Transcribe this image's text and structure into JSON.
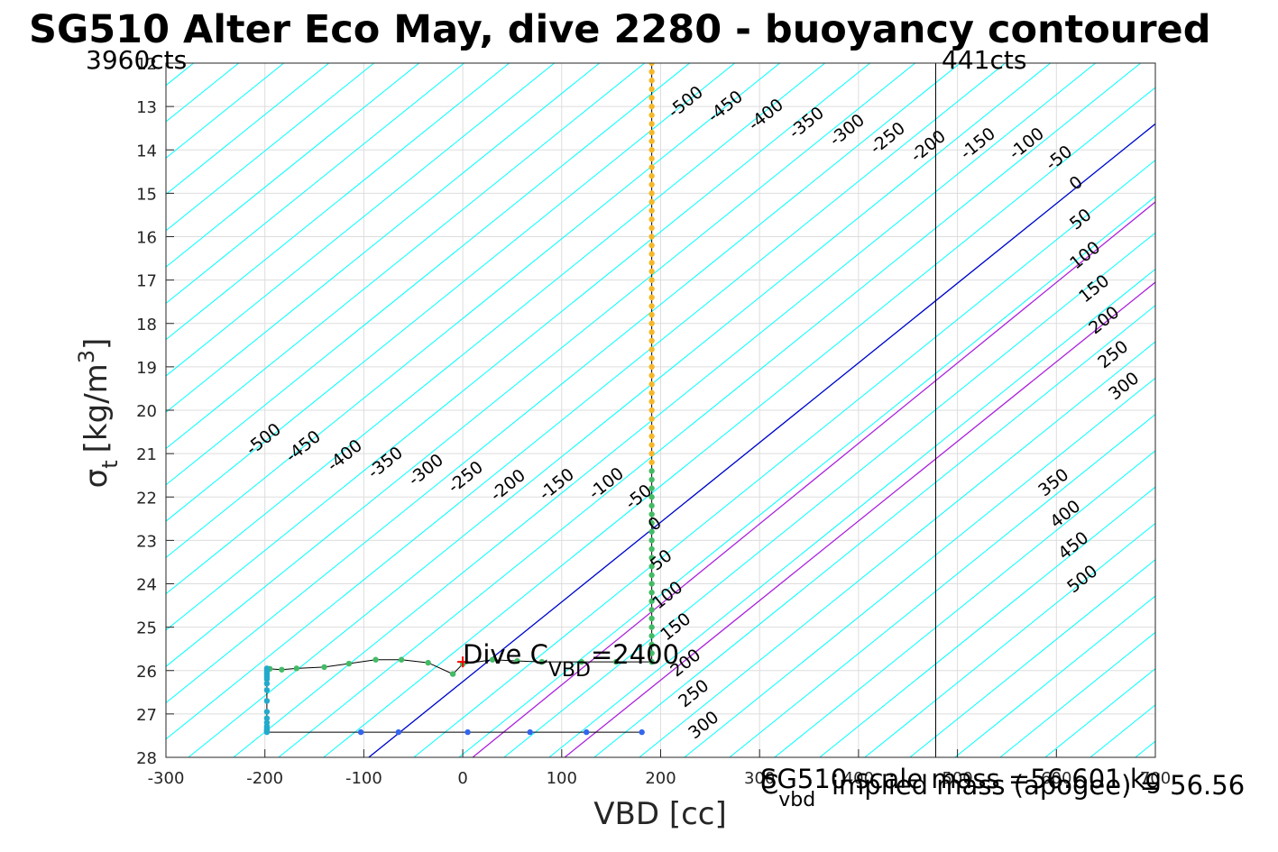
{
  "colors": {
    "contour_cyan": "#00ffff",
    "zero_contour": "#0000cc",
    "positive_magenta": "#aa22dd",
    "apogee_line": "#000000",
    "dive_points": "#f5b82a",
    "climb_points": "#44bb66",
    "surface_points": "#22aacc",
    "bottom_points": "#3366ee",
    "dive_marker": "#ff0000",
    "grid": "#dddddd"
  },
  "chart_data": {
    "type": "line",
    "title": "SG510 Alter Eco May, dive 2280 - buoyancy contoured",
    "xlabel": "VBD [cc]",
    "ylabel_main": "σ",
    "ylabel_sub": "t",
    "ylabel_unit": "[kg/m",
    "ylabel_sup": "3",
    "ylabel_close": "]",
    "xlim": [
      -300,
      700
    ],
    "ylim": [
      12,
      28
    ],
    "y_reversed": true,
    "grid": true,
    "x_ticks": [
      -300,
      -200,
      -100,
      0,
      100,
      200,
      300,
      400,
      500,
      600,
      700
    ],
    "y_ticks": [
      12,
      13,
      14,
      15,
      16,
      17,
      18,
      19,
      20,
      21,
      22,
      23,
      24,
      25,
      26,
      27,
      28
    ],
    "left_top_label": "3960cts",
    "right_top_label": "441cts",
    "apogee_vbd": 478,
    "contour_levels": [
      -500,
      -450,
      -400,
      -350,
      -300,
      -250,
      -200,
      -150,
      -100,
      -50,
      0,
      50,
      100,
      150,
      200,
      250,
      300,
      350,
      400,
      450,
      500
    ],
    "zero_line": {
      "x": [
        -95,
        700
      ],
      "y": [
        28,
        13.4
      ]
    },
    "positive_lines": [
      {
        "x": [
          10,
          700
        ],
        "y": [
          28,
          15.2
        ]
      },
      {
        "x": [
          103,
          700
        ],
        "y": [
          28,
          17.05
        ]
      }
    ],
    "upper_labels": [
      "-500",
      "-450",
      "-400",
      "-350",
      "-300",
      "-250",
      "-200",
      "-150",
      "-100",
      "-50",
      "0",
      "50",
      "100",
      "150",
      "200",
      "250",
      "300"
    ],
    "lower_labels": [
      "-500",
      "-450",
      "-400",
      "-350",
      "-300",
      "-250",
      "-200",
      "-150",
      "-100",
      "-50",
      "0",
      "50",
      "100",
      "150",
      "200",
      "250",
      "300"
    ],
    "right_labels": [
      "350",
      "400",
      "450",
      "500"
    ],
    "dive_annotation": {
      "x": 0,
      "y": 25.8,
      "text_main": "Dive C",
      "text_sub": "VBD",
      "text_value": "=2400"
    },
    "bottom_text_1_main": "C",
    "bottom_text_1_sub": "vbd",
    "bottom_text_2": "SG510 scale mass =56.601 kg",
    "bottom_text_3": "implied mass (apogee) = 56.56",
    "series": [
      {
        "name": "",
        "color_key": "dive_points",
        "x": [
          191,
          191,
          191,
          191,
          191,
          191,
          191,
          191,
          191,
          191,
          191,
          191,
          191,
          191,
          191,
          191,
          191,
          191,
          191,
          191,
          191,
          191,
          191,
          191,
          191,
          191,
          191,
          191,
          191,
          191,
          191,
          191,
          191,
          191,
          191,
          191,
          191,
          191,
          191,
          191,
          191,
          191,
          191,
          191,
          191,
          191,
          191
        ],
        "y": [
          12.0,
          12.2,
          12.4,
          12.6,
          12.8,
          13.0,
          13.2,
          13.4,
          13.6,
          13.8,
          14.0,
          14.2,
          14.4,
          14.6,
          14.8,
          15.0,
          15.2,
          15.4,
          15.6,
          15.8,
          16.0,
          16.2,
          16.4,
          16.6,
          16.8,
          17.0,
          17.2,
          17.4,
          17.6,
          17.8,
          18.0,
          18.2,
          18.4,
          18.6,
          18.8,
          19.0,
          19.2,
          19.4,
          19.6,
          19.8,
          20.0,
          20.2,
          20.4,
          20.6,
          20.8,
          21.0,
          21.2
        ]
      },
      {
        "name": "",
        "color_key": "climb_points",
        "x": [
          191,
          191,
          191,
          191,
          191,
          191,
          191,
          191,
          191,
          191,
          191,
          191,
          191,
          191,
          191,
          191,
          191,
          191,
          191,
          191,
          191,
          191,
          191,
          155,
          120,
          80,
          55,
          30,
          0,
          -10,
          -35,
          -62,
          -88,
          -115,
          -140,
          -168,
          -183,
          -195
        ],
        "y": [
          21.4,
          21.6,
          21.8,
          22.0,
          22.2,
          22.4,
          22.6,
          22.8,
          23.0,
          23.2,
          23.4,
          23.6,
          23.8,
          24.0,
          24.2,
          24.4,
          24.6,
          24.8,
          25.0,
          25.2,
          25.4,
          25.6,
          25.8,
          25.8,
          25.8,
          25.8,
          25.78,
          25.75,
          25.85,
          26.08,
          25.82,
          25.75,
          25.75,
          25.84,
          25.92,
          25.95,
          25.98,
          25.96
        ]
      },
      {
        "name": "",
        "color_key": "surface_points",
        "x": [
          -198,
          -198,
          -198,
          -198,
          -198,
          -198,
          -198,
          -198,
          -198,
          -198,
          -198,
          -198,
          -198,
          -198,
          -198,
          -198,
          -198,
          -198
        ],
        "y": [
          25.95,
          26.0,
          26.05,
          26.1,
          26.15,
          26.2,
          26.3,
          26.45,
          26.7,
          26.95,
          27.1,
          27.2,
          27.28,
          27.32,
          27.36,
          27.38,
          27.4,
          27.42
        ]
      },
      {
        "name": "",
        "color_key": "bottom_points",
        "x": [
          -103,
          -65,
          5,
          68,
          125,
          181
        ],
        "y": [
          27.42,
          27.42,
          27.42,
          27.42,
          27.42,
          27.42
        ]
      }
    ]
  }
}
